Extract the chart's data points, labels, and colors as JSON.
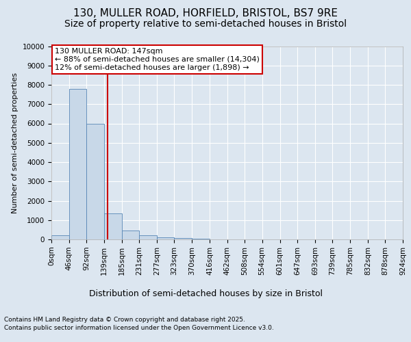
{
  "title_line1": "130, MULLER ROAD, HORFIELD, BRISTOL, BS7 9RE",
  "title_line2": "Size of property relative to semi-detached houses in Bristol",
  "xlabel": "Distribution of semi-detached houses by size in Bristol",
  "ylabel": "Number of semi-detached properties",
  "footer_line1": "Contains HM Land Registry data © Crown copyright and database right 2025.",
  "footer_line2": "Contains public sector information licensed under the Open Government Licence v3.0.",
  "property_label": "130 MULLER ROAD: 147sqm",
  "annotation_line1": "← 88% of semi-detached houses are smaller (14,304)",
  "annotation_line2": "12% of semi-detached houses are larger (1,898) →",
  "bin_edges": [
    0,
    46,
    92,
    139,
    185,
    231,
    277,
    323,
    370,
    416,
    462,
    508,
    554,
    601,
    647,
    693,
    739,
    785,
    832,
    878,
    924
  ],
  "bin_labels": [
    "0sqm",
    "46sqm",
    "92sqm",
    "139sqm",
    "185sqm",
    "231sqm",
    "277sqm",
    "323sqm",
    "370sqm",
    "416sqm",
    "462sqm",
    "508sqm",
    "554sqm",
    "601sqm",
    "647sqm",
    "693sqm",
    "739sqm",
    "785sqm",
    "832sqm",
    "878sqm",
    "924sqm"
  ],
  "counts": [
    200,
    7800,
    6000,
    1350,
    450,
    200,
    100,
    80,
    50,
    10,
    5,
    3,
    2,
    1,
    1,
    0,
    0,
    0,
    0,
    0
  ],
  "bar_color": "#c8d8e8",
  "bar_edge_color": "#5585b5",
  "vline_color": "#cc0000",
  "vline_x": 147,
  "box_color": "#cc0000",
  "ylim": [
    0,
    10000
  ],
  "yticks": [
    0,
    1000,
    2000,
    3000,
    4000,
    5000,
    6000,
    7000,
    8000,
    9000,
    10000
  ],
  "bg_color": "#dce6f0",
  "plot_bg_color": "#dce6f0",
  "grid_color": "#ffffff",
  "title_fontsize": 11,
  "subtitle_fontsize": 10,
  "annotation_fontsize": 8,
  "ylabel_fontsize": 8,
  "xlabel_fontsize": 9,
  "tick_fontsize": 7.5,
  "footer_fontsize": 6.5
}
